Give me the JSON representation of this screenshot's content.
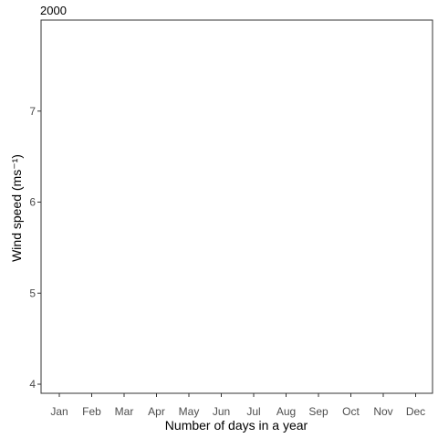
{
  "chart_data": {
    "type": "line",
    "title": "2000",
    "xlabel": "Number of days in a year",
    "ylabel": "Wind speed (ms⁻¹)",
    "x_ticks": [
      "Jan",
      "Feb",
      "Mar",
      "Apr",
      "May",
      "Jun",
      "Jul",
      "Aug",
      "Sep",
      "Oct",
      "Nov",
      "Dec"
    ],
    "y_ticks": [
      "4",
      "5",
      "6",
      "7"
    ],
    "ylim": [
      3.9,
      8.0
    ],
    "grid": false,
    "series": []
  }
}
